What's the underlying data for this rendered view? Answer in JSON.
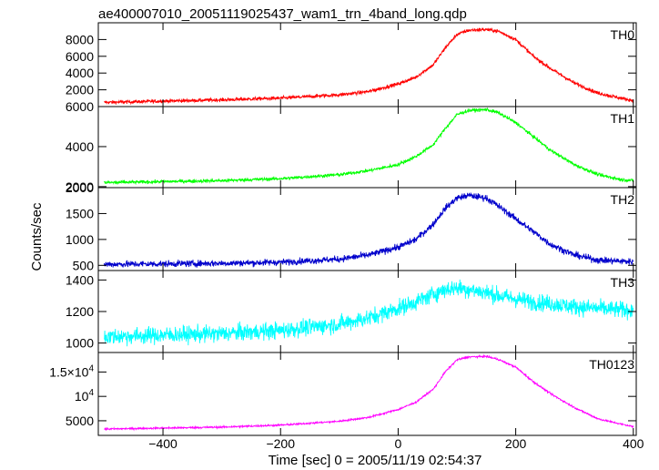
{
  "title": "ae400007010_20051119025437_wam1_trn_4band_long.qdp",
  "ylabel": "Counts/sec",
  "xlabel": "Time [sec] 0 = 2005/11/19 02:54:37",
  "x_ticks": [
    {
      "value": -400,
      "label": "−400"
    },
    {
      "value": -200,
      "label": "−200"
    },
    {
      "value": 0,
      "label": "0"
    },
    {
      "value": 200,
      "label": "200"
    },
    {
      "value": 400,
      "label": "400"
    }
  ],
  "chart_data": {
    "type": "line",
    "xlim": [
      -510,
      405
    ],
    "panels": [
      {
        "name": "TH0",
        "color": "#ff0000",
        "ylim": [
          0,
          10000
        ],
        "y_ticks": [
          {
            "value": 2000,
            "label": "2000"
          },
          {
            "value": 4000,
            "label": "4000"
          },
          {
            "value": 6000,
            "label": "6000"
          },
          {
            "value": 8000,
            "label": "8000"
          }
        ],
        "x": [
          -500,
          -400,
          -300,
          -200,
          -100,
          -50,
          0,
          30,
          60,
          80,
          100,
          120,
          150,
          170,
          200,
          230,
          260,
          300,
          340,
          380,
          400
        ],
        "y": [
          500,
          650,
          800,
          1000,
          1400,
          1800,
          2700,
          3500,
          5000,
          7000,
          8600,
          9100,
          9200,
          9000,
          8000,
          6000,
          4500,
          2800,
          1600,
          1000,
          700
        ],
        "noise": 150
      },
      {
        "name": "TH1",
        "color": "#00ff00",
        "ylim": [
          1950,
          6000
        ],
        "y_ticks": [
          {
            "value": 2000,
            "label": "2000"
          },
          {
            "value": 4000,
            "label": "4000"
          },
          {
            "value": 6000,
            "label": "6000"
          }
        ],
        "x": [
          -500,
          -400,
          -300,
          -200,
          -100,
          -50,
          0,
          30,
          60,
          80,
          100,
          120,
          150,
          170,
          200,
          230,
          260,
          300,
          340,
          380,
          400
        ],
        "y": [
          2200,
          2250,
          2300,
          2400,
          2600,
          2800,
          3100,
          3500,
          4100,
          4900,
          5600,
          5800,
          5850,
          5700,
          5200,
          4500,
          3800,
          3100,
          2600,
          2350,
          2300
        ],
        "noise": 60
      },
      {
        "name": "TH2",
        "color": "#0000cc",
        "ylim": [
          400,
          2000
        ],
        "y_ticks": [
          {
            "value": 500,
            "label": "500"
          },
          {
            "value": 1000,
            "label": "1000"
          },
          {
            "value": 1500,
            "label": "1500"
          },
          {
            "value": 2000,
            "label": "2000"
          }
        ],
        "x": [
          -500,
          -400,
          -300,
          -200,
          -100,
          -50,
          0,
          30,
          60,
          80,
          100,
          120,
          150,
          170,
          200,
          230,
          260,
          300,
          340,
          380,
          400
        ],
        "y": [
          520,
          530,
          540,
          560,
          620,
          700,
          850,
          1000,
          1300,
          1600,
          1800,
          1850,
          1800,
          1650,
          1400,
          1150,
          900,
          700,
          600,
          580,
          570
        ],
        "noise": 45
      },
      {
        "name": "TH3",
        "color": "#00ffff",
        "ylim": [
          940,
          1460
        ],
        "y_ticks": [
          {
            "value": 1000,
            "label": "1000"
          },
          {
            "value": 1200,
            "label": "1200"
          },
          {
            "value": 1400,
            "label": "1400"
          }
        ],
        "x": [
          -500,
          -400,
          -300,
          -200,
          -100,
          -50,
          0,
          30,
          60,
          80,
          100,
          120,
          150,
          170,
          200,
          230,
          260,
          300,
          340,
          380,
          400
        ],
        "y": [
          1040,
          1050,
          1060,
          1080,
          1120,
          1160,
          1220,
          1260,
          1310,
          1340,
          1350,
          1340,
          1320,
          1300,
          1280,
          1260,
          1250,
          1230,
          1220,
          1210,
          1210
        ],
        "noise": 38
      },
      {
        "name": "TH0123",
        "color": "#ff00ff",
        "ylim": [
          2000,
          19000
        ],
        "y_ticks": [
          {
            "value": 5000,
            "label": "5000"
          },
          {
            "value": 10000,
            "label": "10",
            "sup": "4"
          },
          {
            "value": 15000,
            "label": "1.5×10",
            "sup": "4"
          }
        ],
        "x": [
          -500,
          -400,
          -300,
          -200,
          -100,
          -50,
          0,
          30,
          60,
          80,
          100,
          120,
          150,
          170,
          200,
          230,
          260,
          300,
          340,
          380,
          400
        ],
        "y": [
          3300,
          3500,
          3700,
          4100,
          4900,
          5700,
          7300,
          8800,
          11500,
          15000,
          17500,
          18100,
          18200,
          17600,
          16000,
          13000,
          10500,
          7700,
          5400,
          4300,
          3800
        ],
        "noise": 130
      }
    ]
  }
}
